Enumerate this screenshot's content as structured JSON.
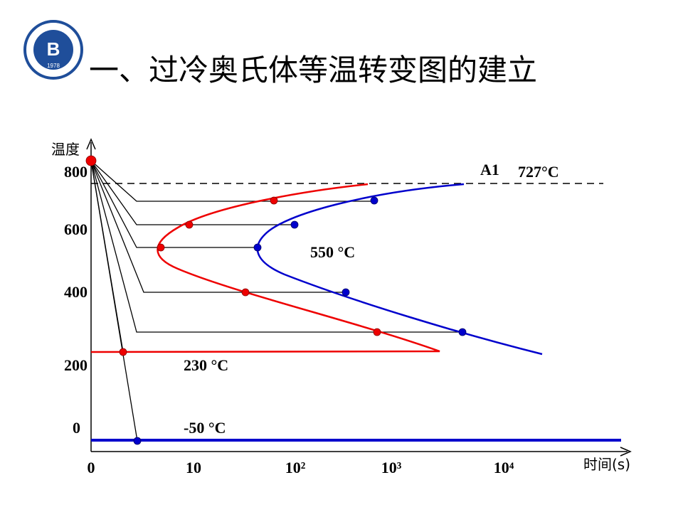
{
  "header": {
    "title": "一、过冷奥氏体等温转变图的建立",
    "logo_year": "1978"
  },
  "diagram": {
    "y_axis_label": "温度",
    "x_axis_label": "时间(s)",
    "y_ticks": [
      "800",
      "600",
      "400",
      "200",
      "0"
    ],
    "x_ticks": [
      "0",
      "10",
      "10²",
      "10³",
      "10⁴"
    ],
    "annotations": {
      "a1": "A1",
      "a1_temp": "727°C",
      "nose": "550 °C",
      "ms": "230 °C",
      "mf": "-50 °C"
    }
  }
}
